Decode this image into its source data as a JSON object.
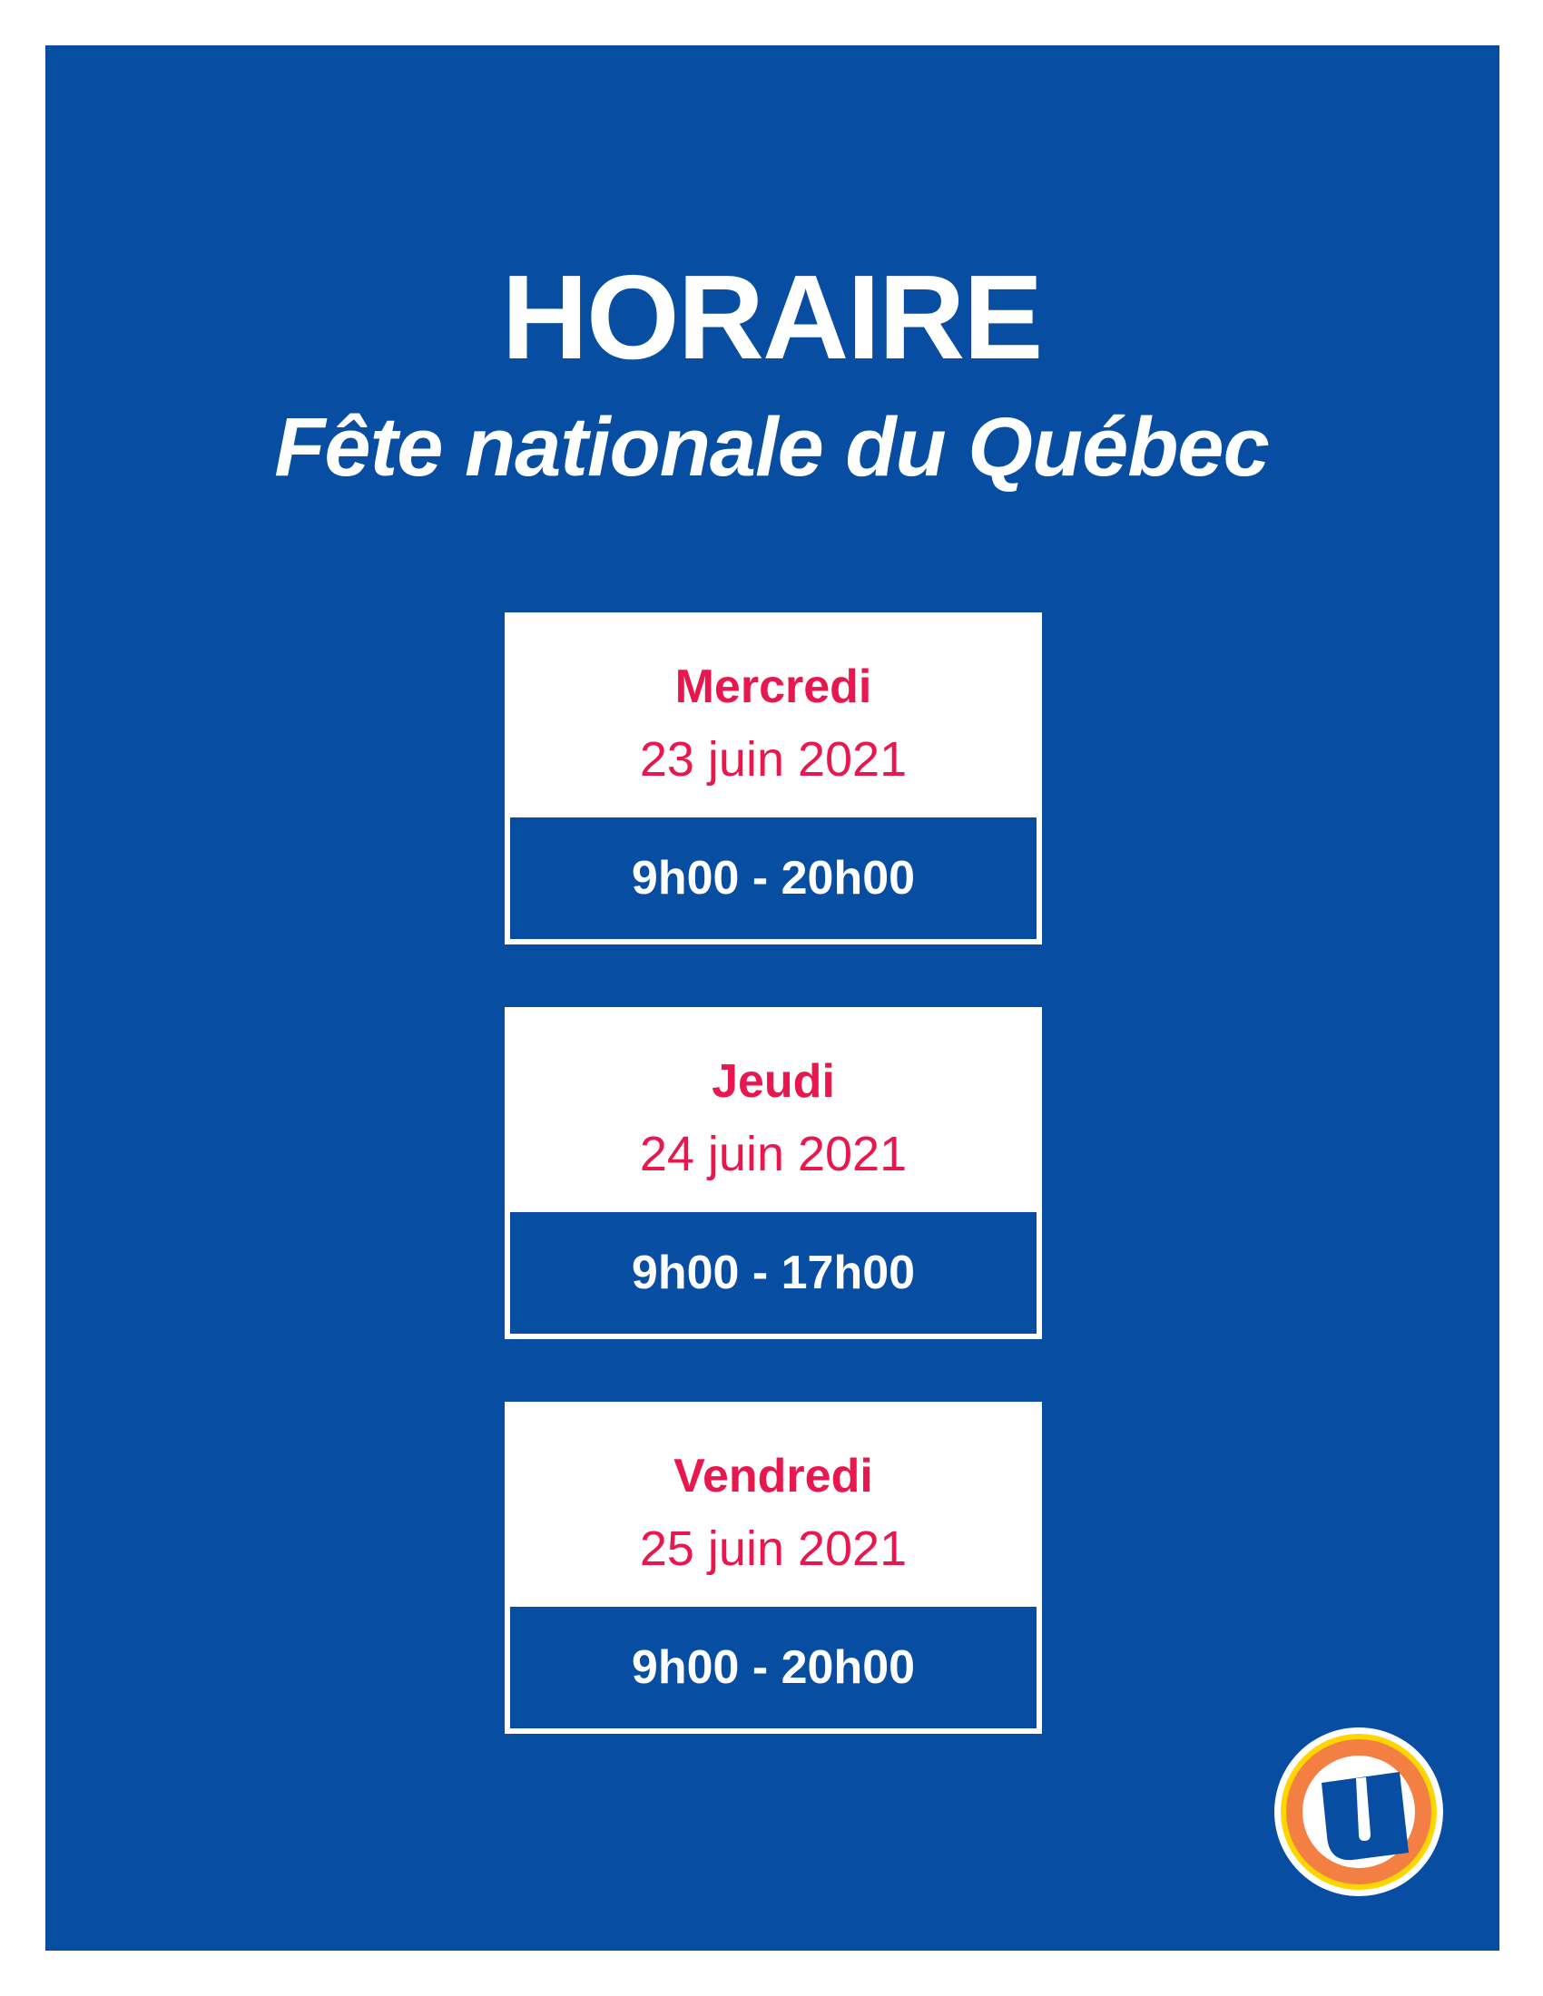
{
  "header": {
    "title": "HORAIRE",
    "subtitle": "Fête nationale du Québec"
  },
  "schedule": [
    {
      "day": "Mercredi",
      "date": "23 juin 2021",
      "hours": "9h00 - 20h00"
    },
    {
      "day": "Jeudi",
      "date": "24 juin 2021",
      "hours": "9h00 - 17h00"
    },
    {
      "day": "Vendredi",
      "date": "25 juin 2021",
      "hours": "9h00 - 20h00"
    }
  ],
  "logo": {
    "icon": "uniprix-u-logo",
    "letter": "U"
  },
  "colors": {
    "background": "#074ea3",
    "accent": "#e8184f",
    "logo_orange": "#f47f43",
    "logo_yellow": "#ffd600"
  }
}
